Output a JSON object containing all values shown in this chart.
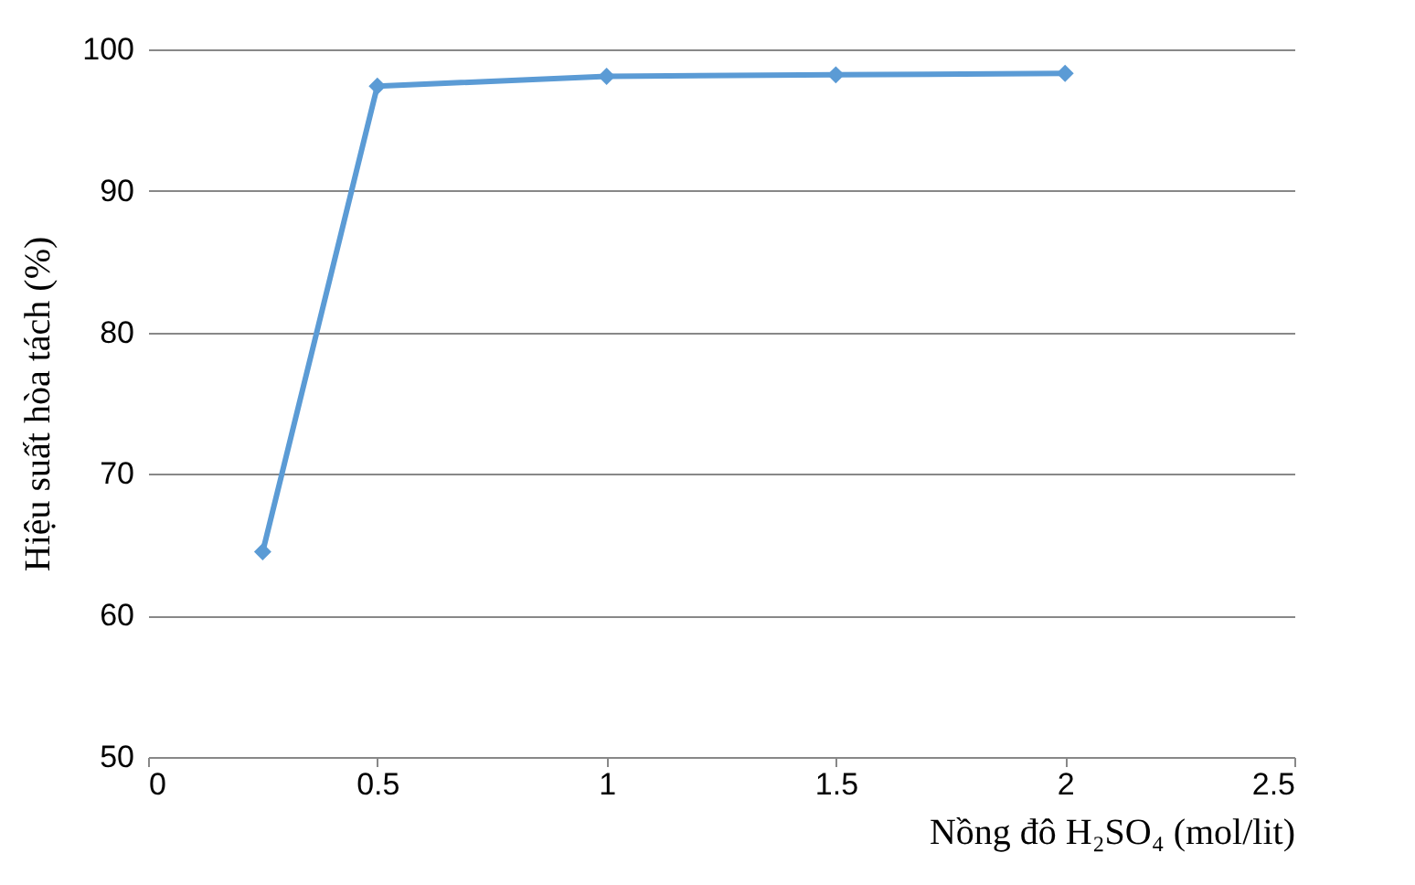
{
  "chart_data": {
    "type": "line",
    "xlabel": "Nồng đô H₂SO₄ (mol/lit)",
    "ylabel": "Hiệu suất hòa tách (%)",
    "x": [
      0.25,
      0.5,
      1,
      1.5,
      2
    ],
    "series": [
      {
        "color": "#5b9bd5",
        "values": [
          64.5,
          97.4,
          98.1,
          98.2,
          98.3
        ]
      }
    ],
    "xlim": [
      0,
      2.5
    ],
    "xticks": [
      0,
      0.5,
      1,
      1.5,
      2,
      2.5
    ],
    "ylim": [
      50,
      100
    ],
    "yticks": [
      50,
      60,
      70,
      80,
      90,
      100
    ],
    "grid": "y",
    "marker": "diamond",
    "line_style": "solid"
  }
}
